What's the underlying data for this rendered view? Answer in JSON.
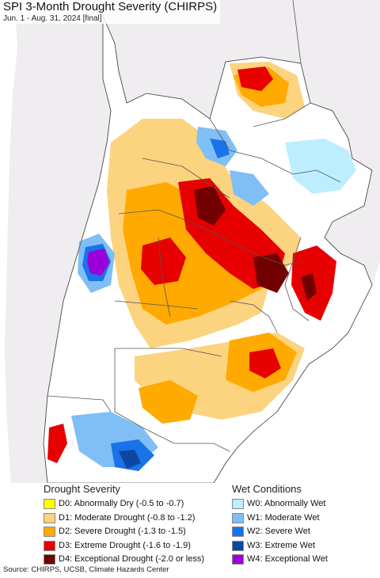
{
  "title": "SPI 3-Month Drought Severity (CHIRPS)",
  "subtitle": "Jun. 1 - Aug. 31, 2024 [final]",
  "colors": {
    "ocean": "#ffffff",
    "outside_land": "#efedf0",
    "border": "#555555",
    "D0": "#ffff00",
    "D1": "#fcd37f",
    "D2": "#ffaa00",
    "D3": "#e60000",
    "D4": "#730000",
    "W0": "#bdeeff",
    "W1": "#7fbff5",
    "W2": "#1a73e8",
    "W3": "#0d47a1",
    "W4": "#9b00d9"
  },
  "legend": {
    "drought_heading": "Drought Severity",
    "wet_heading": "Wet Conditions",
    "drought_items": [
      {
        "code": "D0",
        "label": "D0: Abnormally Dry (-0.5 to -0.7)",
        "color": "#ffff00"
      },
      {
        "code": "D1",
        "label": "D1: Moderate Drought (-0.8 to -1.2)",
        "color": "#fcd37f"
      },
      {
        "code": "D2",
        "label": "D2: Severe Drought (-1.3 to -1.5)",
        "color": "#ffaa00"
      },
      {
        "code": "D3",
        "label": "D3: Extreme Drought (-1.6 to -1.9)",
        "color": "#e60000"
      },
      {
        "code": "D4",
        "label": "D4: Exceptional Drought (-2.0 or less)",
        "color": "#730000"
      }
    ],
    "wet_items": [
      {
        "code": "W0",
        "label": "W0: Abnormally Wet",
        "color": "#bdeeff"
      },
      {
        "code": "W1",
        "label": "W1: Moderate Wet",
        "color": "#7fbff5"
      },
      {
        "code": "W2",
        "label": "W2: Severe Wet",
        "color": "#1a73e8"
      },
      {
        "code": "W3",
        "label": "W3: Extreme Wet",
        "color": "#0d47a1"
      },
      {
        "code": "W4",
        "label": "W4: Exceptional Wet",
        "color": "#9b00d9"
      }
    ]
  },
  "source": "Source: CHIRPS, UCSB, Climate Hazards Center"
}
